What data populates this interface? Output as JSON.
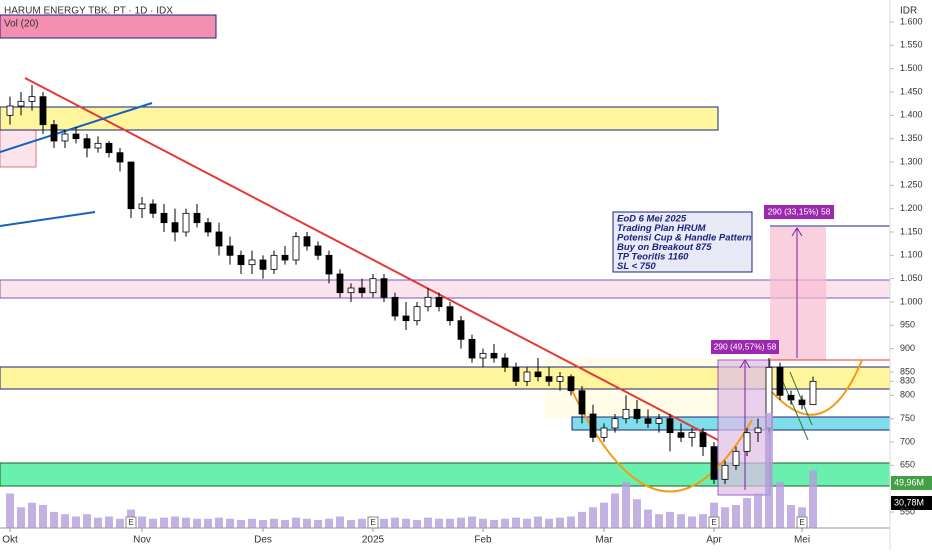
{
  "header": {
    "title": "HARUM ENERGY TBK. PT · 1D · IDX",
    "indicator": "Vol (20)",
    "currency": "IDR"
  },
  "chart_data": {
    "type": "candlestick",
    "candles": [
      [
        1400,
        1440,
        1380,
        1420
      ],
      [
        1420,
        1450,
        1400,
        1430
      ],
      [
        1430,
        1465,
        1410,
        1440
      ],
      [
        1440,
        1450,
        1360,
        1380
      ],
      [
        1380,
        1390,
        1330,
        1345
      ],
      [
        1345,
        1370,
        1330,
        1360
      ],
      [
        1360,
        1375,
        1340,
        1350
      ],
      [
        1350,
        1360,
        1310,
        1330
      ],
      [
        1330,
        1355,
        1320,
        1340
      ],
      [
        1340,
        1345,
        1310,
        1320
      ],
      [
        1320,
        1330,
        1280,
        1300
      ],
      [
        1300,
        1300,
        1180,
        1200
      ],
      [
        1200,
        1225,
        1180,
        1210
      ],
      [
        1210,
        1220,
        1180,
        1190
      ],
      [
        1190,
        1210,
        1150,
        1170
      ],
      [
        1170,
        1200,
        1130,
        1150
      ],
      [
        1150,
        1200,
        1140,
        1190
      ],
      [
        1190,
        1210,
        1160,
        1170
      ],
      [
        1170,
        1180,
        1140,
        1150
      ],
      [
        1150,
        1170,
        1100,
        1120
      ],
      [
        1120,
        1140,
        1080,
        1100
      ],
      [
        1100,
        1110,
        1060,
        1080
      ],
      [
        1080,
        1110,
        1060,
        1090
      ],
      [
        1090,
        1100,
        1050,
        1070
      ],
      [
        1070,
        1110,
        1060,
        1100
      ],
      [
        1100,
        1120,
        1080,
        1090
      ],
      [
        1090,
        1150,
        1080,
        1140
      ],
      [
        1140,
        1150,
        1110,
        1120
      ],
      [
        1120,
        1130,
        1090,
        1100
      ],
      [
        1100,
        1110,
        1040,
        1060
      ],
      [
        1060,
        1070,
        1010,
        1020
      ],
      [
        1020,
        1040,
        1000,
        1030
      ],
      [
        1030,
        1050,
        1010,
        1020
      ],
      [
        1020,
        1060,
        1010,
        1050
      ],
      [
        1050,
        1060,
        1000,
        1010
      ],
      [
        1010,
        1020,
        960,
        970
      ],
      [
        970,
        1000,
        940,
        960
      ],
      [
        960,
        1000,
        950,
        990
      ],
      [
        990,
        1030,
        980,
        1010
      ],
      [
        1010,
        1020,
        980,
        990
      ],
      [
        990,
        1000,
        950,
        960
      ],
      [
        960,
        970,
        900,
        920
      ],
      [
        920,
        930,
        870,
        880
      ],
      [
        880,
        900,
        860,
        890
      ],
      [
        890,
        910,
        870,
        880
      ],
      [
        880,
        890,
        850,
        860
      ],
      [
        860,
        870,
        820,
        830
      ],
      [
        830,
        860,
        820,
        850
      ],
      [
        850,
        880,
        830,
        840
      ],
      [
        840,
        860,
        820,
        830
      ],
      [
        830,
        850,
        810,
        840
      ],
      [
        840,
        845,
        800,
        810
      ],
      [
        810,
        820,
        740,
        760
      ],
      [
        760,
        780,
        700,
        710
      ],
      [
        710,
        740,
        700,
        730
      ],
      [
        730,
        760,
        720,
        750
      ],
      [
        750,
        800,
        740,
        770
      ],
      [
        770,
        790,
        740,
        750
      ],
      [
        750,
        770,
        730,
        740
      ],
      [
        740,
        760,
        720,
        750
      ],
      [
        750,
        760,
        680,
        720
      ],
      [
        720,
        740,
        700,
        710
      ],
      [
        710,
        730,
        690,
        720
      ],
      [
        720,
        730,
        670,
        690
      ],
      [
        690,
        700,
        610,
        620
      ],
      [
        620,
        660,
        610,
        650
      ],
      [
        650,
        690,
        640,
        680
      ],
      [
        680,
        730,
        670,
        720
      ],
      [
        720,
        750,
        700,
        730
      ],
      [
        730,
        880,
        720,
        860
      ],
      [
        860,
        870,
        790,
        800
      ],
      [
        800,
        810,
        780,
        790
      ],
      [
        790,
        800,
        770,
        780
      ],
      [
        780,
        840,
        780,
        830
      ]
    ],
    "volume": [
      30,
      18,
      22,
      20,
      14,
      12,
      10,
      12,
      9,
      10,
      8,
      16,
      10,
      8,
      9,
      10,
      9,
      8,
      8,
      9,
      8,
      7,
      8,
      7,
      8,
      7,
      9,
      8,
      7,
      8,
      10,
      7,
      8,
      9,
      8,
      9,
      8,
      7,
      9,
      8,
      8,
      9,
      10,
      8,
      7,
      8,
      9,
      8,
      10,
      8,
      9,
      10,
      14,
      18,
      22,
      30,
      40,
      25,
      16,
      12,
      14,
      12,
      10,
      12,
      22,
      18,
      20,
      26,
      30,
      100,
      40,
      20,
      18,
      50
    ],
    "ylim": [
      550,
      1600
    ],
    "yticks": [
      {
        "value": 1600,
        "label": "1.600"
      },
      {
        "value": 1550,
        "label": "1.550"
      },
      {
        "value": 1500,
        "label": "1.500"
      },
      {
        "value": 1450,
        "label": "1.450"
      },
      {
        "value": 1400,
        "label": "1.400"
      },
      {
        "value": 1350,
        "label": "1.350"
      },
      {
        "value": 1300,
        "label": "1.300"
      },
      {
        "value": 1250,
        "label": "1.250"
      },
      {
        "value": 1200,
        "label": "1.200"
      },
      {
        "value": 1150,
        "label": "1.150"
      },
      {
        "value": 1100,
        "label": "1.100"
      },
      {
        "value": 1050,
        "label": "1.050"
      },
      {
        "value": 1000,
        "label": "1.000"
      },
      950,
      900,
      850,
      830,
      800,
      750,
      700,
      650,
      550
    ],
    "xticks": [
      {
        "value": 0,
        "label": "Okt"
      },
      {
        "value": 12,
        "label": "Nov"
      },
      {
        "value": 23,
        "label": "Des"
      },
      {
        "value": 33,
        "label": "2025"
      },
      {
        "value": 43,
        "label": "Feb"
      },
      {
        "value": 54,
        "label": "Mar"
      },
      {
        "value": 64,
        "label": "Apr"
      },
      {
        "value": 72,
        "label": "Mei"
      }
    ],
    "volume_labels": [
      "49,96M",
      "30,78M"
    ],
    "event_markers": [
      {
        "index": 11,
        "label": "E"
      },
      {
        "index": 33,
        "label": "E"
      },
      {
        "index": 64,
        "label": "E"
      },
      {
        "index": 72,
        "label": "E"
      }
    ],
    "measures": [
      "290 (49,57%) 58",
      "290 (33,15%) 58"
    ],
    "notes": [
      "EoD 6 Mei 2025",
      "Trading Plan HRUM",
      "Potensi Cup & Handle Pattern",
      "Buy on Breakout 875",
      "TP Teoritis 1160",
      "SL < 750"
    ],
    "up_color": "#ffffff",
    "down_color": "#000000",
    "volume_color": "#b39ddb"
  }
}
